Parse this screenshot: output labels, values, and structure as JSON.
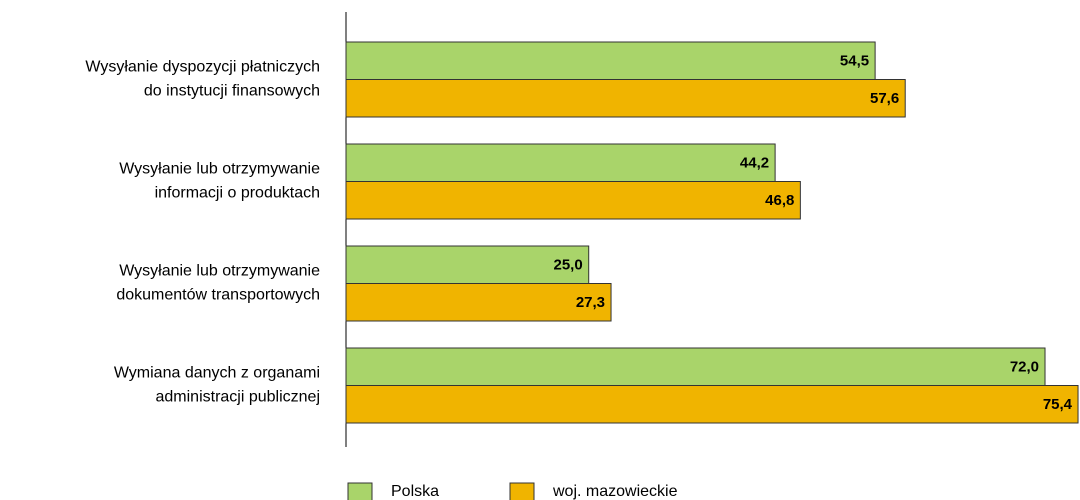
{
  "chart_data": {
    "type": "hbar",
    "categories": [
      [
        "Wysyłanie dyspozycji płatniczych",
        "do instytucji finansowych"
      ],
      [
        "Wysyłanie lub otrzymywanie",
        "informacji o produktach"
      ],
      [
        "Wysyłanie lub otrzymywanie",
        "dokumentów transportowych"
      ],
      [
        "Wymiana danych z organami",
        "administracji publicznej"
      ]
    ],
    "series": [
      {
        "name": "Polska",
        "color": "#a9d46a",
        "values": [
          54.5,
          44.2,
          25.0,
          72.0
        ],
        "value_labels": [
          "54,5",
          "44,2",
          "25,0",
          "72,0"
        ]
      },
      {
        "name": "woj. mazowieckie",
        "color": "#f0b400",
        "values": [
          57.6,
          46.8,
          27.3,
          75.4
        ],
        "value_labels": [
          "57,6",
          "46,8",
          "27,3",
          "75,4"
        ]
      }
    ],
    "xlim": [
      0,
      75.5
    ]
  }
}
